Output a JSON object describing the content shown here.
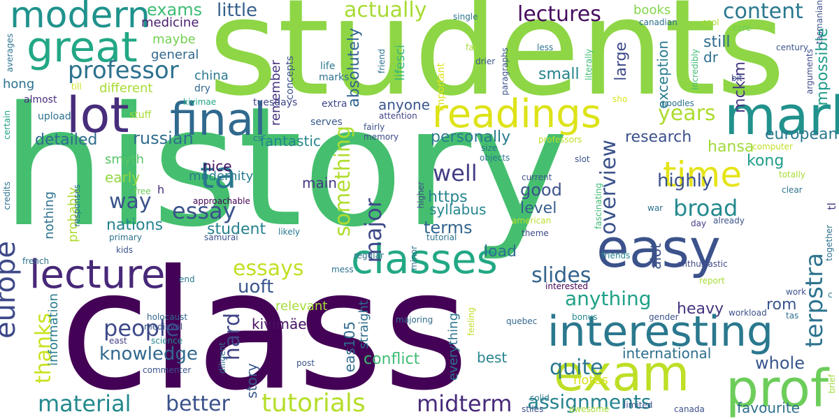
{
  "words": [
    {
      "text": "history",
      "color": "#45bf6f"
    },
    {
      "text": "class",
      "color": "#440256"
    },
    {
      "text": "students",
      "color": "#8ed645"
    },
    {
      "text": "interesting",
      "color": "#2a788e"
    },
    {
      "text": "exam",
      "color": "#bddf26"
    },
    {
      "text": "prof",
      "color": "#6ccd5a"
    },
    {
      "text": "easy",
      "color": "#3b528b"
    },
    {
      "text": "mark",
      "color": "#21918c"
    },
    {
      "text": "readings",
      "color": "#dde318"
    },
    {
      "text": "classes",
      "color": "#22a884"
    },
    {
      "text": "great",
      "color": "#22a785"
    },
    {
      "text": "lot",
      "color": "#472d7b"
    },
    {
      "text": "final",
      "color": "#30698e"
    },
    {
      "text": "modern",
      "color": "#20928c"
    },
    {
      "text": "europe",
      "color": "#3e4989"
    },
    {
      "text": "lecture",
      "color": "#482878"
    },
    {
      "text": "time",
      "color": "#e5e419"
    },
    {
      "text": "ta",
      "color": "#2a768e"
    },
    {
      "text": "professor",
      "color": "#2c718e"
    },
    {
      "text": "terpstra",
      "color": "#2c728e"
    },
    {
      "text": "overview",
      "color": "#3b528b"
    },
    {
      "text": "tutorials",
      "color": "#b5de2b"
    },
    {
      "text": "material",
      "color": "#23898e"
    },
    {
      "text": "better",
      "color": "#3b528b"
    },
    {
      "text": "midterm",
      "color": "#472a7a"
    },
    {
      "text": "assignments",
      "color": "#25838e"
    },
    {
      "text": "quite",
      "color": "#2a778e"
    },
    {
      "text": "anything",
      "color": "#1fa187"
    },
    {
      "text": "slides",
      "color": "#33638d"
    },
    {
      "text": "people",
      "color": "#3e4a89"
    },
    {
      "text": "knowledge",
      "color": "#31688e"
    },
    {
      "text": "essays",
      "color": "#c2df23"
    },
    {
      "text": "essay",
      "color": "#3b528b"
    },
    {
      "text": "broad",
      "color": "#23898e"
    },
    {
      "text": "way",
      "color": "#3a538b"
    },
    {
      "text": "well",
      "color": "#433e85"
    },
    {
      "text": "years",
      "color": "#addc30"
    },
    {
      "text": "something",
      "color": "#b0dd2f"
    },
    {
      "text": "major",
      "color": "#3e4989"
    },
    {
      "text": "content",
      "color": "#2a788e"
    },
    {
      "text": "actually",
      "color": "#a8db34"
    },
    {
      "text": "lectures",
      "color": "#460b5e"
    },
    {
      "text": "exams",
      "color": "#3dbc74"
    },
    {
      "text": "little",
      "color": "#355f8d"
    },
    {
      "text": "hard",
      "color": "#414487"
    },
    {
      "text": "uoft",
      "color": "#39558c"
    },
    {
      "text": "thanks",
      "color": "#cae11f"
    },
    {
      "text": "whole",
      "color": "#39568c"
    },
    {
      "text": "highly",
      "color": "#3b518b"
    },
    {
      "text": "international",
      "color": "#2e6f8e"
    },
    {
      "text": "russian",
      "color": "#2e6e8e"
    },
    {
      "text": "detailed",
      "color": "#2f6c8e"
    },
    {
      "text": "personally",
      "color": "#297b8e"
    },
    {
      "text": "terms",
      "color": "#32658e"
    },
    {
      "text": "european",
      "color": "#2a788e"
    },
    {
      "text": "research",
      "color": "#3c508b"
    },
    {
      "text": "hansa",
      "color": "#a0da39"
    },
    {
      "text": "still",
      "color": "#2f6b8e"
    },
    {
      "text": "mckim",
      "color": "#453581"
    },
    {
      "text": "kong",
      "color": "#1e9c89"
    },
    {
      "text": "good",
      "color": "#3b528b"
    },
    {
      "text": "level",
      "color": "#355e8d"
    },
    {
      "text": "absolutely",
      "color": "#32658e"
    },
    {
      "text": "anyone",
      "color": "#38578c"
    },
    {
      "text": "https",
      "color": "#25848e"
    },
    {
      "text": "syllabus",
      "color": "#24868e"
    },
    {
      "text": "load",
      "color": "#2e6f8e"
    },
    {
      "text": "main",
      "color": "#453882"
    },
    {
      "text": "nations",
      "color": "#25838e"
    },
    {
      "text": "student",
      "color": "#25828e"
    },
    {
      "text": "fantastic",
      "color": "#24868e"
    },
    {
      "text": "modernity",
      "color": "#287d8e"
    },
    {
      "text": "nice",
      "color": "#471365"
    },
    {
      "text": "small",
      "color": "#26828e"
    },
    {
      "text": "exception",
      "color": "#297b8e"
    },
    {
      "text": "impossible",
      "color": "#1e9b8a"
    },
    {
      "text": "large",
      "color": "#3e4989"
    },
    {
      "text": "dr",
      "color": "#2e6e8e"
    },
    {
      "text": "rom",
      "color": "#39568c"
    },
    {
      "text": "heavy",
      "color": "#463480"
    },
    {
      "text": "alot",
      "color": "#3b518b"
    },
    {
      "text": "story",
      "color": "#38598c"
    },
    {
      "text": "conflict",
      "color": "#3fbc73"
    },
    {
      "text": "everything",
      "color": "#2b758e"
    },
    {
      "text": "best",
      "color": "#25838e"
    },
    {
      "text": "notes",
      "color": "#d8e219"
    },
    {
      "text": "favourite",
      "color": "#2e6e8e"
    },
    {
      "text": "kivimäe",
      "color": "#471063"
    },
    {
      "text": "eas105",
      "color": "#306a8e"
    },
    {
      "text": "straight",
      "color": "#2e6d8e"
    },
    {
      "text": "relevant",
      "color": "#a5db36"
    },
    {
      "text": "information",
      "color": "#287c8e"
    },
    {
      "text": "probably",
      "color": "#addc30"
    },
    {
      "text": "nothing",
      "color": "#2d708e"
    },
    {
      "text": "early",
      "color": "#93d741"
    },
    {
      "text": "smyth",
      "color": "#56c667"
    },
    {
      "text": "hong",
      "color": "#2c728e"
    },
    {
      "text": "different",
      "color": "#a8db34"
    },
    {
      "text": "general",
      "color": "#31688e"
    },
    {
      "text": "maybe",
      "color": "#75d054"
    },
    {
      "text": "medicine",
      "color": "#481d6f"
    },
    {
      "text": "china",
      "color": "#2a768e"
    },
    {
      "text": "remember",
      "color": "#46327e"
    },
    {
      "text": "books",
      "color": "#84d44b"
    },
    {
      "text": "lifesci",
      "color": "#35b779"
    },
    {
      "text": "concepts",
      "color": "#3b528b"
    },
    {
      "text": "marks",
      "color": "#2c718e"
    },
    {
      "text": "life",
      "color": "#2a788e"
    },
    {
      "text": "memory",
      "color": "#3e4989"
    },
    {
      "text": "fairly",
      "color": "#3b528b"
    },
    {
      "text": "objects",
      "color": "#2a768e"
    },
    {
      "text": "tuesdays",
      "color": "#404688"
    },
    {
      "text": "extra",
      "color": "#3e4989"
    },
    {
      "text": "serves",
      "color": "#38598c"
    },
    {
      "text": "attention",
      "color": "#414487"
    },
    {
      "text": "upload",
      "color": "#2c718e"
    },
    {
      "text": "stuff",
      "color": "#a5db36"
    },
    {
      "text": "kivimae",
      "color": "#20a486"
    },
    {
      "text": "dry",
      "color": "#31688e"
    },
    {
      "text": "almost",
      "color": "#472d7b"
    },
    {
      "text": "till",
      "color": "#d0e11c"
    },
    {
      "text": "averages",
      "color": "#2c728e"
    },
    {
      "text": "certain",
      "color": "#1fa188"
    },
    {
      "text": "credits",
      "color": "#2c728e"
    },
    {
      "text": "french",
      "color": "#2d718e"
    },
    {
      "text": "kids",
      "color": "#3a538b"
    },
    {
      "text": "primary",
      "color": "#2c718e"
    },
    {
      "text": "samurai",
      "color": "#3b528b"
    },
    {
      "text": "likely",
      "color": "#2a788e"
    },
    {
      "text": "approachable",
      "color": "#440256"
    },
    {
      "text": "responses",
      "color": "#2e6d8e"
    },
    {
      "text": "free",
      "color": "#6ccd5a"
    },
    {
      "text": "h",
      "color": "#472d7b"
    },
    {
      "text": "holocaust",
      "color": "#32658e"
    },
    {
      "text": "medieval",
      "color": "#39568c"
    },
    {
      "text": "east",
      "color": "#433e85"
    },
    {
      "text": "science",
      "color": "#23898e"
    },
    {
      "text": "commenter",
      "color": "#3a538b"
    },
    {
      "text": "diligent",
      "color": "#2e6e8e"
    },
    {
      "text": "end",
      "color": "#2a788e"
    },
    {
      "text": "post",
      "color": "#3b528b"
    },
    {
      "text": "majoring",
      "color": "#2f6c8e"
    },
    {
      "text": "quebec",
      "color": "#31688e"
    },
    {
      "text": "bonus",
      "color": "#24878e"
    },
    {
      "text": "feeling",
      "color": "#bddf26"
    },
    {
      "text": "mess",
      "color": "#2c718e"
    },
    {
      "text": "regular",
      "color": "#2e6f8e"
    },
    {
      "text": "minor",
      "color": "#2c718e"
    },
    {
      "text": "tutorial",
      "color": "#2c718e"
    },
    {
      "text": "american",
      "color": "#b8de29"
    },
    {
      "text": "theme",
      "color": "#3e4989"
    },
    {
      "text": "higher",
      "color": "#3e4a89"
    },
    {
      "text": "war",
      "color": "#2c718e"
    },
    {
      "text": "day",
      "color": "#433e85"
    },
    {
      "text": "already",
      "color": "#3b528b"
    },
    {
      "text": "friends",
      "color": "#25848e"
    },
    {
      "text": "interested",
      "color": "#440256"
    },
    {
      "text": "report",
      "color": "#a8db34"
    },
    {
      "text": "enthusiastic",
      "color": "#3e4989"
    },
    {
      "text": "work",
      "color": "#3b528b"
    },
    {
      "text": "gender",
      "color": "#3b528b"
    },
    {
      "text": "workload",
      "color": "#3b528b"
    },
    {
      "text": "tas",
      "color": "#2c718e"
    },
    {
      "text": "solid",
      "color": "#2a788e"
    },
    {
      "text": "stiles",
      "color": "#3b528b"
    },
    {
      "text": "limited",
      "color": "#3b528b"
    },
    {
      "text": "awesome",
      "color": "#a8db34"
    },
    {
      "text": "canada",
      "color": "#3b528b"
    },
    {
      "text": "brief",
      "color": "#a0da39"
    },
    {
      "text": "c",
      "color": "#2a788e"
    },
    {
      "text": "tl",
      "color": "#433e85"
    },
    {
      "text": "together",
      "color": "#2c718e"
    },
    {
      "text": "clear",
      "color": "#2c718e"
    },
    {
      "text": "totally",
      "color": "#a8db34"
    },
    {
      "text": "computer",
      "color": "#bddf26"
    },
    {
      "text": "slot",
      "color": "#3b528b"
    },
    {
      "text": "current",
      "color": "#3b528b"
    },
    {
      "text": "fascinating",
      "color": "#3fbc73"
    },
    {
      "text": "size",
      "color": "#2c718e"
    },
    {
      "text": "professors",
      "color": "#bddf26"
    },
    {
      "text": "noodles",
      "color": "#2c718e"
    },
    {
      "text": "sho",
      "color": "#d8e219"
    },
    {
      "text": "cs",
      "color": "#2c718e"
    },
    {
      "text": "literally",
      "color": "#3fbc73"
    },
    {
      "text": "incredibly",
      "color": "#3fbc73"
    },
    {
      "text": "bit",
      "color": "#3b528b"
    },
    {
      "text": "arguments",
      "color": "#3e4989"
    },
    {
      "text": "century",
      "color": "#3b528b"
    },
    {
      "text": "tasmanian",
      "color": "#3b528b"
    },
    {
      "text": "core",
      "color": "#6ccd5a"
    },
    {
      "text": "cool",
      "color": "#a8db34"
    },
    {
      "text": "canadian",
      "color": "#2c718e"
    },
    {
      "text": "less",
      "color": "#2c718e"
    },
    {
      "text": "single",
      "color": "#2c718e"
    },
    {
      "text": "far",
      "color": "#a8db34"
    },
    {
      "text": "drier",
      "color": "#3b528b"
    },
    {
      "text": "paragraphs",
      "color": "#3b528b"
    },
    {
      "text": "important",
      "color": "#dde318"
    },
    {
      "text": "friend",
      "color": "#2c718e"
    }
  ]
}
